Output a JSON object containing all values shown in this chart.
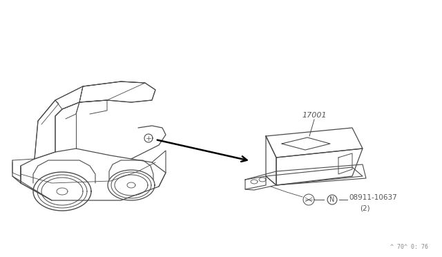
{
  "bg_color": "#ffffff",
  "line_color": "#4a4a4a",
  "text_color": "#555555",
  "title_text": "17001",
  "part_label": "08911-10637",
  "part_qty": "(2)",
  "footnote": "^ 70^ 0: 76",
  "fig_width": 6.4,
  "fig_height": 3.72,
  "dpi": 100
}
